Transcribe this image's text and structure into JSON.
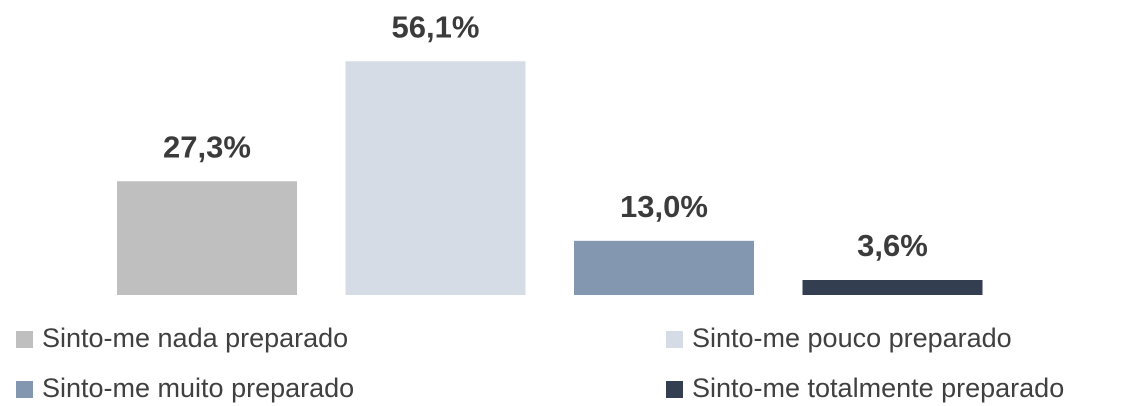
{
  "chart_data": {
    "type": "bar",
    "series": [
      {
        "name": "Sinto-me nada preparado",
        "color": "#bfbfbf",
        "values": [
          27.3
        ],
        "value_labels": [
          "27,3%"
        ]
      },
      {
        "name": "Sinto-me pouco preparado",
        "color": "#d6dce5",
        "values": [
          56.1
        ],
        "value_labels": [
          "56,1%"
        ]
      },
      {
        "name": "Sinto-me muito preparado",
        "color": "#8497b0",
        "values": [
          13.0
        ],
        "value_labels": [
          "13,0%"
        ]
      },
      {
        "name": "Sinto-me totalmente preparado",
        "color": "#333f50",
        "values": [
          3.6
        ],
        "value_labels": [
          "3,6%"
        ]
      }
    ],
    "ylim": [
      0,
      60
    ],
    "legend": "bottom"
  }
}
